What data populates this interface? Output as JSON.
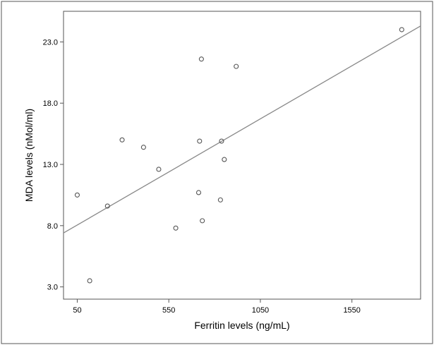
{
  "chart_data": {
    "type": "scatter",
    "xlabel": "Ferritin levels (ng/mL)",
    "ylabel": "MDA levels (nMol/ml)",
    "xlim": [
      -25,
      1925
    ],
    "ylim": [
      2,
      25.5
    ],
    "x_ticks": [
      50,
      550,
      1050,
      1550
    ],
    "x_tick_labels": [
      "50",
      "550",
      "1050",
      "1550"
    ],
    "y_ticks": [
      3.0,
      8.0,
      13.0,
      18.0,
      23.0
    ],
    "y_tick_labels": [
      "3.0",
      "8.0",
      "13.0",
      "18.0",
      "23.0"
    ],
    "grid": false,
    "points": [
      {
        "x": 50,
        "y": 10.5
      },
      {
        "x": 118,
        "y": 3.5
      },
      {
        "x": 215,
        "y": 9.6
      },
      {
        "x": 295,
        "y": 15.0
      },
      {
        "x": 412,
        "y": 14.4
      },
      {
        "x": 495,
        "y": 12.6
      },
      {
        "x": 588,
        "y": 7.8
      },
      {
        "x": 713,
        "y": 10.7
      },
      {
        "x": 718,
        "y": 14.9
      },
      {
        "x": 728,
        "y": 21.6
      },
      {
        "x": 733,
        "y": 8.4
      },
      {
        "x": 832,
        "y": 10.1
      },
      {
        "x": 838,
        "y": 14.9
      },
      {
        "x": 853,
        "y": 13.4
      },
      {
        "x": 918,
        "y": 21.0
      },
      {
        "x": 1822,
        "y": 24.0
      }
    ],
    "fit_line": {
      "x": [
        -25,
        1925
      ],
      "y": [
        7.4,
        24.3
      ]
    },
    "colors": {
      "line": "#888888",
      "marker": "#555555",
      "frame": "#555555",
      "tick": "#000000"
    }
  }
}
